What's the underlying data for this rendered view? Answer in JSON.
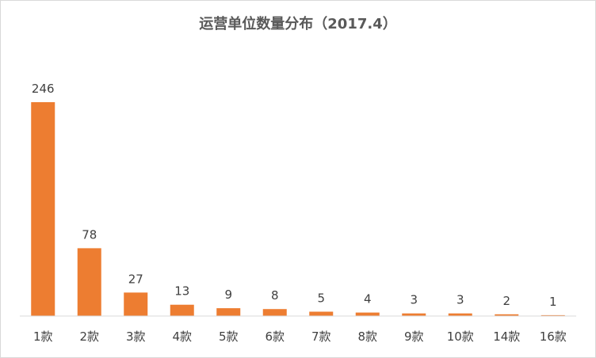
{
  "chart_data": {
    "type": "bar",
    "title": "运营单位数量分布（2017.4）",
    "categories": [
      "1款",
      "2款",
      "3款",
      "4款",
      "5款",
      "6款",
      "7款",
      "8款",
      "9款",
      "10款",
      "14款",
      "16款"
    ],
    "values": [
      246,
      78,
      27,
      13,
      9,
      8,
      5,
      4,
      3,
      3,
      2,
      1
    ],
    "ylim": [
      0,
      246
    ],
    "grid": false,
    "bar_color": "#ED7D31",
    "data_labels": true,
    "legend": "none"
  }
}
